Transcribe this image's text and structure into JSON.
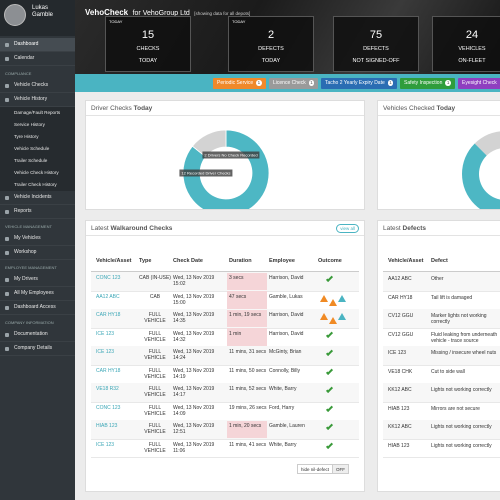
{
  "header": {
    "app": "VehoCheck",
    "company": "for VehoGroup Ltd",
    "scope": "[showing data for all depots]"
  },
  "user": {
    "name": "Lukas Gamble"
  },
  "sidebar": {
    "top": [
      {
        "label": "Dashboard",
        "active": true
      },
      {
        "label": "Calendar"
      }
    ],
    "sections": [
      {
        "title": "COMPLIANCE",
        "items": [
          {
            "label": "Vehicle Checks"
          },
          {
            "label": "Vehicle History",
            "children": [
              "Damage/Fault Reports",
              "Service History",
              "Tyre History",
              "Vehicle Schedule",
              "Trailer Schedule",
              "Vehicle Check History",
              "Trailer Check History"
            ]
          },
          {
            "label": "Vehicle Incidents"
          },
          {
            "label": "Reports"
          }
        ]
      },
      {
        "title": "VEHICLE MANAGEMENT",
        "items": [
          {
            "label": "My Vehicles"
          },
          {
            "label": "Workshop"
          }
        ]
      },
      {
        "title": "EMPLOYEE MANAGEMENT",
        "items": [
          {
            "label": "My Drivers"
          },
          {
            "label": "All My Employees"
          },
          {
            "label": "Dashboard Access"
          }
        ]
      },
      {
        "title": "COMPANY INFORMATION",
        "items": [
          {
            "label": "Documentation"
          },
          {
            "label": "Company Details"
          }
        ]
      }
    ]
  },
  "stats": [
    {
      "caption": "TODAY",
      "value": 15,
      "label": "CHECKS",
      "sub": "TODAY"
    },
    {
      "caption": "TODAY",
      "value": 2,
      "label": "DEFECTS",
      "sub": "TODAY"
    },
    {
      "value": 75,
      "label": "DEFECTS",
      "sub": "NOT SIGNED-OFF"
    },
    {
      "value": 24,
      "label": "VEHICLES",
      "sub": "ON-FLEET"
    }
  ],
  "reminders": [
    {
      "label": "Periodic Service",
      "count": 1,
      "color": "#f0892a"
    },
    {
      "label": "Licence Check",
      "count": 1,
      "color": "#9a9a9a"
    },
    {
      "label": "Tacho 2 Yearly Expiry Date",
      "count": 1,
      "color": "#2a6db3"
    },
    {
      "label": "Safety Inspection",
      "count": 1,
      "color": "#2f9d3c"
    },
    {
      "label": "Eyesight Check",
      "color": "#8f3fc0"
    }
  ],
  "driver_checks": {
    "title": "Driver Checks",
    "title_bold": "Today",
    "slices": [
      {
        "value": 12,
        "label": "12 Recorded Driver Checks",
        "color": "#4db7c4"
      },
      {
        "value": 2,
        "label": "2 Drivers No Check Recorded",
        "color": "#d3d3d3"
      }
    ]
  },
  "vehicle_checks": {
    "title": "Vehicles Checked",
    "title_bold": "Today"
  },
  "walkaround": {
    "title": "Latest",
    "title_bold": "Walkaround Checks",
    "view_all": "view all",
    "columns": [
      "Vehicle/Asset",
      "Type",
      "Check Date",
      "Duration",
      "Employee",
      "Outcome"
    ],
    "rows": [
      {
        "cells": [
          "CONC 123",
          "CAB (IN-USE)",
          "Wed, 13 Nov 2019 15:02",
          "3 secs",
          "Harrison, David"
        ],
        "short": true,
        "defects": false
      },
      {
        "cells": [
          "AA12 ABC",
          "CAB",
          "Wed, 13 Nov 2019 15:00",
          "47 secs",
          "Gamble, Lukas"
        ],
        "short": true,
        "defects": true
      },
      {
        "cells": [
          "CAR HY18",
          "FULL VEHICLE",
          "Wed, 13 Nov 2019 14:35",
          "1 min, 19 secs",
          "Harrison, David"
        ],
        "short": true,
        "defects": true
      },
      {
        "cells": [
          "ICE 123",
          "FULL VEHICLE",
          "Wed, 13 Nov 2019 14:32",
          "1 min",
          "Harrison, David"
        ],
        "short": true,
        "defects": false
      },
      {
        "cells": [
          "ICE 123",
          "FULL VEHICLE",
          "Wed, 13 Nov 2019 14:24",
          "11 mins, 31 secs",
          "McGinty, Brian"
        ],
        "short": false,
        "defects": false
      },
      {
        "cells": [
          "CAR HY18",
          "FULL VEHICLE",
          "Wed, 13 Nov 2019 14:19",
          "11 mins, 50 secs",
          "Connolly, Billy"
        ],
        "short": false,
        "defects": false
      },
      {
        "cells": [
          "VE18 R32",
          "FULL VEHICLE",
          "Wed, 13 Nov 2019 14:17",
          "11 mins, 52 secs",
          "White, Barry"
        ],
        "short": false,
        "defects": false
      },
      {
        "cells": [
          "CONC 123",
          "FULL VEHICLE",
          "Wed, 13 Nov 2019 14:09",
          "19 mins, 26 secs",
          "Ford, Harry"
        ],
        "short": false,
        "defects": false
      },
      {
        "cells": [
          "HIAB 123",
          "FULL VEHICLE",
          "Wed, 13 Nov 2019 12:51",
          "1 min, 20 secs",
          "Gamble, Lauren"
        ],
        "short": true,
        "defects": false
      },
      {
        "cells": [
          "ICE 123",
          "FULL VEHICLE",
          "Wed, 13 Nov 2019 11:06",
          "11 mins, 41 secs",
          "White, Barry"
        ],
        "short": false,
        "defects": false
      }
    ],
    "toggle_label": "hide nil-defect",
    "toggle_state": "OFF"
  },
  "defects": {
    "title": "Latest",
    "title_bold": "Defects",
    "columns": [
      "Vehicle/Asset",
      "Defect"
    ],
    "rows": [
      [
        "AA12 ABC",
        "Other"
      ],
      [
        "CAR HY18",
        "Tail lift is damaged"
      ],
      [
        "CV12 GGU",
        "Marker lights not working correctly"
      ],
      [
        "CV12 GGU",
        "Fluid leaking from underneath vehicle - trace source"
      ],
      [
        "ICE 123",
        "Missing / insecure wheel nuts"
      ],
      [
        "VE18 CHK",
        "Cut to side wall"
      ],
      [
        "KK12 ABC",
        "Lights not working correctly"
      ],
      [
        "HIAB 123",
        "Mirrors are not secure"
      ],
      [
        "KK12 ABC",
        "Lights not working correctly"
      ],
      [
        "HIAB 123",
        "Lights not working correctly"
      ]
    ]
  }
}
